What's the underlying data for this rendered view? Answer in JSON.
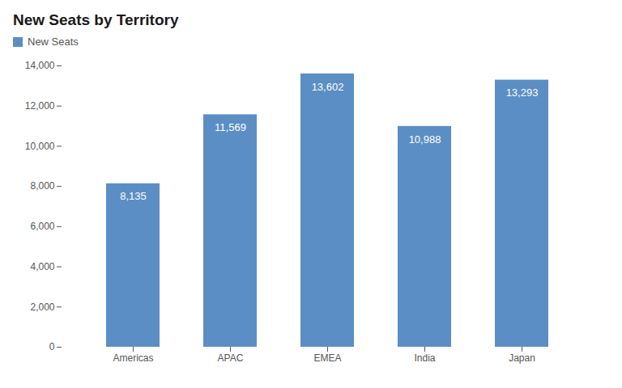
{
  "chart_data": {
    "type": "bar",
    "title": "New Seats by Territory",
    "categories": [
      "Americas",
      "APAC",
      "EMEA",
      "India",
      "Japan"
    ],
    "series": [
      {
        "name": "New Seats",
        "color": "#5b8ec4",
        "values": [
          8135,
          11569,
          13602,
          10988,
          13293
        ],
        "value_labels": [
          "8,135",
          "11,569",
          "13,602",
          "10,988",
          "13,293"
        ]
      }
    ],
    "ylim": [
      0,
      14000
    ],
    "yticks": [
      0,
      {
        "value": 2000,
        "label": "2,000"
      },
      {
        "value": 4000,
        "label": "4,000"
      },
      {
        "value": 6000,
        "label": "6,000"
      },
      {
        "value": 8000,
        "label": "8,000"
      },
      {
        "value": 10000,
        "label": "10,000"
      },
      {
        "value": 12000,
        "label": "12,000"
      },
      {
        "value": 14000,
        "label": "14,000"
      }
    ],
    "grid": false,
    "legend": "top-left",
    "data_labels": true
  }
}
